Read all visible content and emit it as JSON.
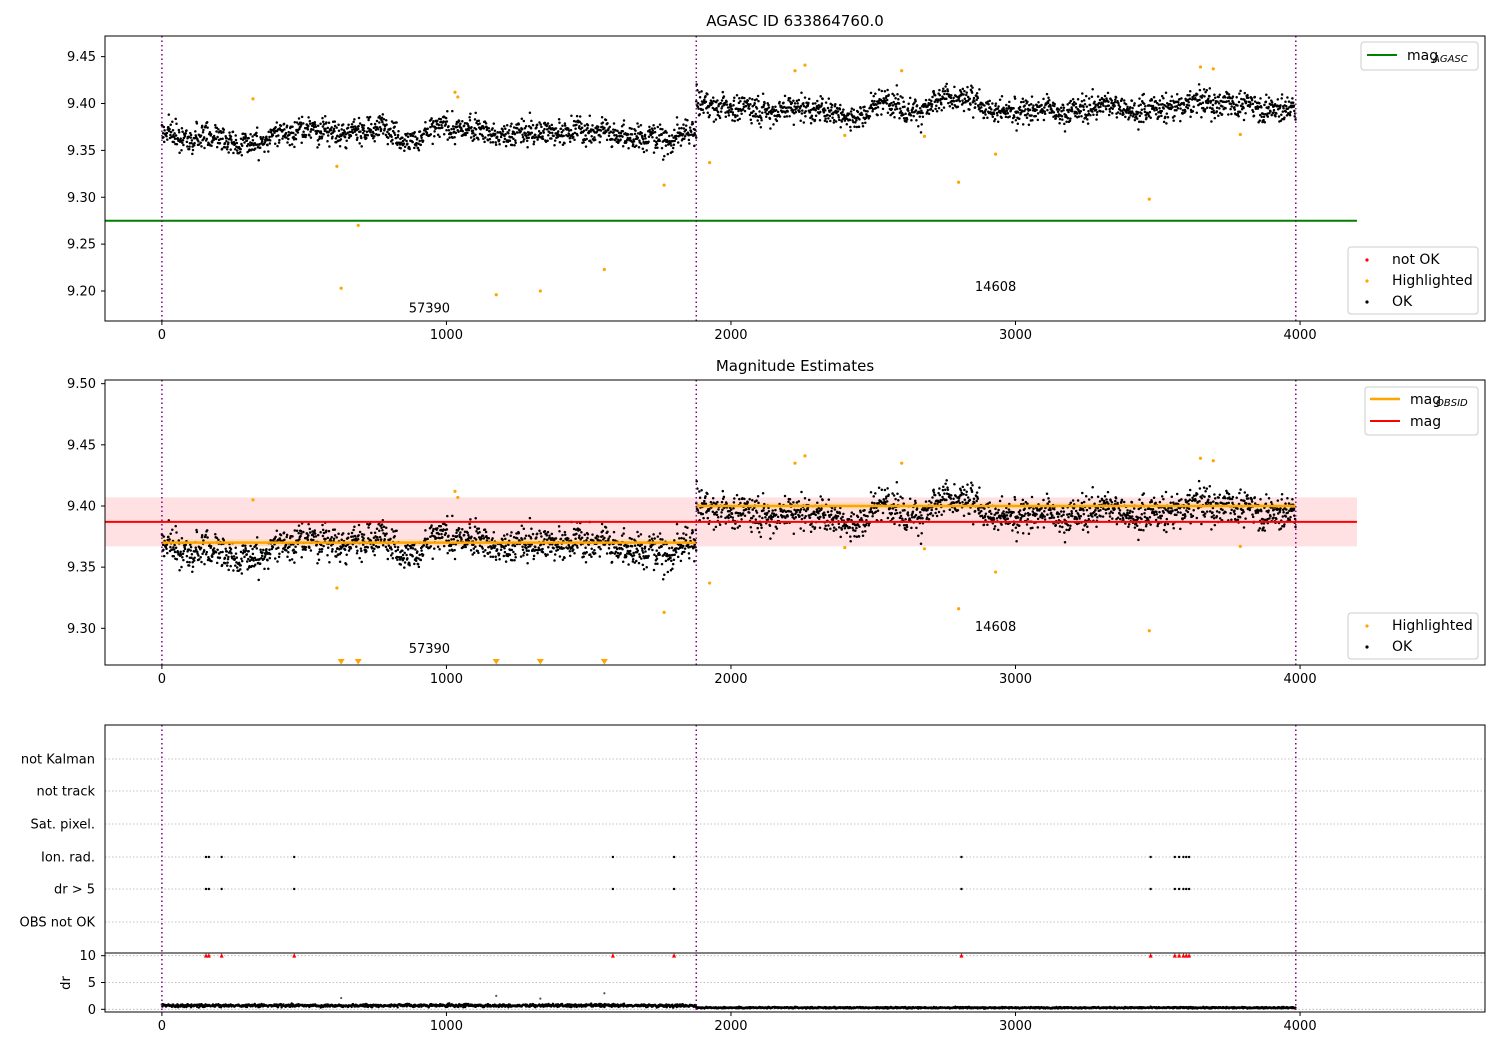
{
  "chart_data": [
    {
      "type": "scatter",
      "title": "AGASC ID 633864760.0",
      "xlim": [
        -200,
        4650
      ],
      "ylim": [
        9.168,
        9.472
      ],
      "xticks": [
        0,
        1000,
        2000,
        3000,
        4000
      ],
      "yticks": [
        9.2,
        9.25,
        9.3,
        9.35,
        9.4,
        9.45
      ],
      "ytick_labels": [
        "9.20",
        "9.25",
        "9.30",
        "9.35",
        "9.40",
        "9.45"
      ],
      "obs_boundaries": [
        0,
        1878,
        3985
      ],
      "obs_labels": [
        {
          "text": "57390",
          "x": 940,
          "y": 9.177
        },
        {
          "text": "14608",
          "x": 2930,
          "y": 9.2
        }
      ],
      "mag_agasc": {
        "value": 9.275,
        "x": [
          -200,
          4200
        ],
        "color": "#008000"
      },
      "segments": [
        {
          "x": [
            0,
            1878
          ],
          "mean": 9.37,
          "noise": 0.011
        },
        {
          "x": [
            1878,
            3985
          ],
          "mean": 9.4,
          "noise": 0.011
        }
      ],
      "highlighted": [
        [
          320,
          9.405
        ],
        [
          615,
          9.333
        ],
        [
          630,
          9.203
        ],
        [
          690,
          9.27
        ],
        [
          1030,
          9.412
        ],
        [
          1040,
          9.407
        ],
        [
          1175,
          9.196
        ],
        [
          1330,
          9.2
        ],
        [
          1555,
          9.223
        ],
        [
          1765,
          9.313
        ],
        [
          1925,
          9.337
        ],
        [
          2225,
          9.435
        ],
        [
          2260,
          9.441
        ],
        [
          2400,
          9.366
        ],
        [
          2600,
          9.435
        ],
        [
          2680,
          9.365
        ],
        [
          2800,
          9.316
        ],
        [
          2930,
          9.346
        ],
        [
          3470,
          9.298
        ],
        [
          3650,
          9.439
        ],
        [
          3695,
          9.437
        ],
        [
          3790,
          9.367
        ]
      ],
      "legend_top": [
        {
          "label": "mag",
          "sub": "AGASC",
          "color": "#008000"
        }
      ],
      "legend_bottom": [
        {
          "label": "not OK",
          "color": "#ff0000"
        },
        {
          "label": "Highlighted",
          "color": "#ffa500"
        },
        {
          "label": "OK",
          "color": "#000000"
        }
      ]
    },
    {
      "type": "scatter",
      "title": "Magnitude Estimates",
      "xlim": [
        -200,
        4650
      ],
      "ylim": [
        9.27,
        9.503
      ],
      "xticks": [
        0,
        1000,
        2000,
        3000,
        4000
      ],
      "yticks": [
        9.3,
        9.35,
        9.4,
        9.45,
        9.5
      ],
      "ytick_labels": [
        "9.30",
        "9.35",
        "9.40",
        "9.45",
        "9.50"
      ],
      "obs_boundaries": [
        0,
        1878,
        3985
      ],
      "obs_labels": [
        {
          "text": "57390",
          "x": 940,
          "y": 9.28
        },
        {
          "text": "14608",
          "x": 2930,
          "y": 9.298
        }
      ],
      "mag": {
        "value": 9.387,
        "band": [
          9.367,
          9.407
        ],
        "x": [
          -200,
          4200
        ],
        "color": "#ff0000",
        "band_color": "#ffdde0"
      },
      "mag_obsid": [
        {
          "x": [
            0,
            1878
          ],
          "value": 9.37,
          "band": [
            9.367,
            9.373
          ]
        },
        {
          "x": [
            1878,
            3985
          ],
          "value": 9.4,
          "band": [
            9.397,
            9.403
          ]
        }
      ],
      "mag_obsid_color": "#ffa500",
      "segments": [
        {
          "x": [
            0,
            1878
          ],
          "mean": 9.37,
          "noise": 0.011
        },
        {
          "x": [
            1878,
            3985
          ],
          "mean": 9.4,
          "noise": 0.011
        }
      ],
      "highlighted": [
        [
          320,
          9.405
        ],
        [
          615,
          9.333
        ],
        [
          1030,
          9.412
        ],
        [
          1040,
          9.407
        ],
        [
          1765,
          9.313
        ],
        [
          1925,
          9.337
        ],
        [
          2225,
          9.435
        ],
        [
          2260,
          9.441
        ],
        [
          2400,
          9.366
        ],
        [
          2600,
          9.435
        ],
        [
          2680,
          9.365
        ],
        [
          2800,
          9.316
        ],
        [
          2930,
          9.346
        ],
        [
          3470,
          9.298
        ],
        [
          3650,
          9.439
        ],
        [
          3695,
          9.437
        ],
        [
          3790,
          9.367
        ]
      ],
      "clipped_markers": [
        630,
        690,
        1175,
        1330,
        1555
      ],
      "legend_top": [
        {
          "label": "mag",
          "sub": "OBSID",
          "color": "#ffa500"
        },
        {
          "label": "mag",
          "sub": "",
          "color": "#ff0000"
        }
      ],
      "legend_bottom": [
        {
          "label": "Highlighted",
          "color": "#ffa500"
        },
        {
          "label": "OK",
          "color": "#000000"
        }
      ]
    },
    {
      "type": "scatter",
      "xlim": [
        -200,
        4650
      ],
      "xticks": [
        0,
        1000,
        2000,
        3000,
        4000
      ],
      "obs_boundaries": [
        0,
        1878,
        3985
      ],
      "flag_rows": [
        "not Kalman",
        "not track",
        "Sat. pixel.",
        "Ion. rad.",
        "dr > 5",
        "OBS not OK"
      ],
      "flag_points": {
        "Ion. rad.": [
          155,
          165,
          210,
          465,
          1585,
          1800,
          2810,
          3475,
          3560,
          3575,
          3590,
          3600,
          3610
        ],
        "dr > 5": [
          155,
          165,
          210,
          465,
          1585,
          1800,
          2810,
          3475,
          3560,
          3575,
          3590,
          3600,
          3610
        ]
      },
      "dr": {
        "ylabel": "dr",
        "ylim": [
          -0.5,
          10.5
        ],
        "yticks": [
          0,
          5,
          10
        ],
        "ytick_labels": [
          "0",
          "5",
          "10"
        ],
        "clipped_red": [
          155,
          165,
          210,
          465,
          1585,
          1800,
          2810,
          3475,
          3560,
          3575,
          3590,
          3600,
          3610
        ],
        "outliers": [
          [
            630,
            2.1
          ],
          [
            1175,
            2.5
          ],
          [
            1330,
            2.0
          ],
          [
            1555,
            3.0
          ]
        ],
        "segments": [
          {
            "x": [
              0,
              1878
            ],
            "mean": 0.7,
            "noise": 0.25
          },
          {
            "x": [
              1878,
              3985
            ],
            "mean": 0.3,
            "noise": 0.12
          }
        ]
      }
    }
  ]
}
